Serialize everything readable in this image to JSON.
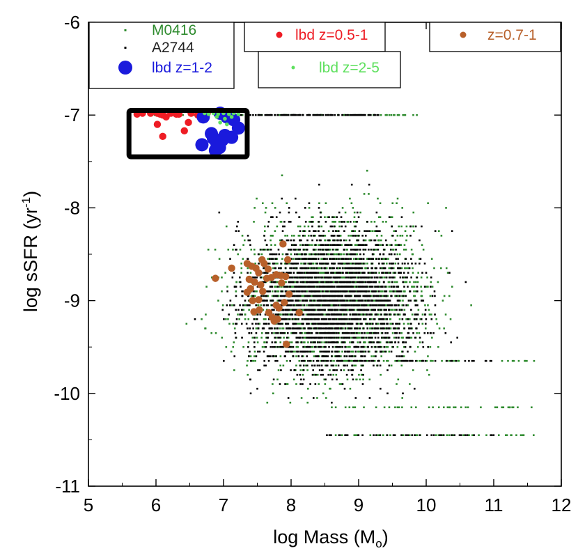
{
  "chart_data": {
    "type": "scatter",
    "title": "",
    "xlabel": "log Mass (M",
    "xlabel_sub": "o",
    "xlabel_close": ")",
    "ylabel": "log sSFR (yr",
    "ylabel_sup": "-1",
    "ylabel_close": ")",
    "xlim": [
      5,
      12
    ],
    "ylim": [
      -11,
      -6
    ],
    "xticks": [
      5,
      6,
      7,
      8,
      9,
      10,
      11,
      12
    ],
    "yticks": [
      -6,
      -7,
      -8,
      -9,
      -10,
      -11
    ],
    "xtick_labels": [
      "5",
      "6",
      "7",
      "8",
      "9",
      "10",
      "11",
      "12"
    ],
    "ytick_labels": [
      "-6",
      "-7",
      "-8",
      "-9",
      "-10",
      "-11"
    ],
    "grid": false,
    "legend_placement": "top",
    "colors": {
      "M0416": "#2e8b2e",
      "A2744": "#000000",
      "lbd_z1_2": "#1a1adc",
      "lbd_z05_1": "#ee1c24",
      "lbd_z2_5": "#5ee05e",
      "z07_1": "#b8602a"
    },
    "highlight_region": {
      "x": [
        5.6,
        7.35
      ],
      "y": [
        -7.45,
        -6.95
      ]
    },
    "series": [
      {
        "name": "M0416",
        "legend": "M0416",
        "color": "#2e8b2e",
        "marker": "small-dot",
        "generated": true,
        "count": 2200,
        "x_center": 8.6,
        "x_spread": 1.1,
        "y_center": -8.95,
        "y_spread": 0.7,
        "x_range": [
          5.0,
          12.0
        ],
        "y_range": [
          -11.0,
          -7.0
        ],
        "saturation_level": -7.0,
        "saturation_x_range": [
          5.8,
          9.9
        ],
        "saturation_count": 110,
        "streak_levels": [
          -9.65,
          -10.15,
          -10.45
        ],
        "streak_x_range": [
          8.4,
          11.6
        ]
      },
      {
        "name": "A2744",
        "legend": "A2744",
        "color": "#000000",
        "marker": "small-dot",
        "generated": true,
        "count": 2600,
        "x_center": 8.6,
        "x_spread": 1.05,
        "y_center": -9.0,
        "y_spread": 0.65,
        "x_range": [
          5.0,
          12.0
        ],
        "y_range": [
          -11.0,
          -7.0
        ],
        "saturation_level": -7.0,
        "saturation_x_range": [
          7.2,
          9.3
        ],
        "saturation_count": 120,
        "streak_levels": [
          -9.65,
          -10.45
        ],
        "streak_x_range": [
          8.5,
          11.0
        ]
      },
      {
        "name": "lbd z=0.5-1",
        "legend": "lbd z=0.5-1",
        "color": "#ee1c24",
        "marker": "medium-circle",
        "points": [
          [
            5.72,
            -6.99
          ],
          [
            5.8,
            -6.98
          ],
          [
            5.92,
            -6.98
          ],
          [
            6.02,
            -6.98
          ],
          [
            6.06,
            -6.99
          ],
          [
            6.1,
            -7.0
          ],
          [
            6.22,
            -6.98
          ],
          [
            6.3,
            -6.99
          ],
          [
            6.34,
            -6.99
          ],
          [
            6.52,
            -6.98
          ],
          [
            6.62,
            -7.0
          ],
          [
            6.76,
            -6.98
          ],
          [
            6.02,
            -7.1
          ],
          [
            6.15,
            -7.02
          ],
          [
            6.48,
            -7.08
          ],
          [
            6.1,
            -7.23
          ],
          [
            6.42,
            -7.17
          ],
          [
            6.8,
            -7.23
          ]
        ]
      },
      {
        "name": "lbd z=1-2",
        "legend": "lbd z=1-2",
        "color": "#1a1adc",
        "marker": "large-circle",
        "points": [
          [
            6.7,
            -7.02
          ],
          [
            6.95,
            -6.98
          ],
          [
            7.05,
            -7.02
          ],
          [
            7.15,
            -7.05
          ],
          [
            7.22,
            -7.14
          ],
          [
            6.82,
            -7.2
          ],
          [
            6.85,
            -7.25
          ],
          [
            6.9,
            -7.3
          ],
          [
            6.94,
            -7.35
          ],
          [
            6.98,
            -7.27
          ],
          [
            7.02,
            -7.22
          ],
          [
            7.12,
            -7.24
          ],
          [
            6.88,
            -7.38
          ],
          [
            6.68,
            -7.32
          ]
        ]
      },
      {
        "name": "lbd z=2-5",
        "legend": "lbd z=2-5",
        "color": "#5ee05e",
        "marker": "small-circle",
        "points": [
          [
            6.72,
            -6.98
          ],
          [
            6.78,
            -6.99
          ],
          [
            6.85,
            -6.98
          ],
          [
            6.92,
            -6.99
          ],
          [
            7.0,
            -6.98
          ],
          [
            7.08,
            -6.99
          ],
          [
            7.15,
            -6.98
          ],
          [
            7.22,
            -6.99
          ],
          [
            6.9,
            -7.02
          ],
          [
            7.02,
            -7.04
          ],
          [
            7.12,
            -7.02
          ],
          [
            6.95,
            -7.08
          ],
          [
            7.05,
            -7.1
          ]
        ]
      },
      {
        "name": "z=0.7-1",
        "legend": "z=0.7-1",
        "color": "#b8602a",
        "marker": "medium-circle",
        "points": [
          [
            7.88,
            -8.39
          ],
          [
            7.57,
            -8.56
          ],
          [
            7.95,
            -8.56
          ],
          [
            7.35,
            -8.6
          ],
          [
            7.6,
            -8.6
          ],
          [
            7.42,
            -8.63
          ],
          [
            7.48,
            -8.65
          ],
          [
            7.12,
            -8.65
          ],
          [
            7.66,
            -8.66
          ],
          [
            7.52,
            -8.7
          ],
          [
            7.78,
            -8.72
          ],
          [
            7.85,
            -8.73
          ],
          [
            7.92,
            -8.74
          ],
          [
            7.71,
            -8.75
          ],
          [
            7.64,
            -8.76
          ],
          [
            6.88,
            -8.76
          ],
          [
            7.38,
            -8.77
          ],
          [
            7.46,
            -8.8
          ],
          [
            7.86,
            -8.81
          ],
          [
            7.55,
            -8.83
          ],
          [
            7.4,
            -8.87
          ],
          [
            7.58,
            -8.9
          ],
          [
            7.35,
            -8.91
          ],
          [
            7.97,
            -8.93
          ],
          [
            7.52,
            -8.99
          ],
          [
            7.43,
            -9.0
          ],
          [
            7.9,
            -9.02
          ],
          [
            7.78,
            -9.05
          ],
          [
            7.82,
            -9.08
          ],
          [
            7.53,
            -9.1
          ],
          [
            7.45,
            -9.12
          ],
          [
            7.67,
            -9.13
          ],
          [
            8.12,
            -9.13
          ],
          [
            7.72,
            -9.18
          ],
          [
            7.8,
            -9.2
          ],
          [
            7.75,
            -9.22
          ],
          [
            7.93,
            -9.47
          ]
        ]
      }
    ]
  }
}
